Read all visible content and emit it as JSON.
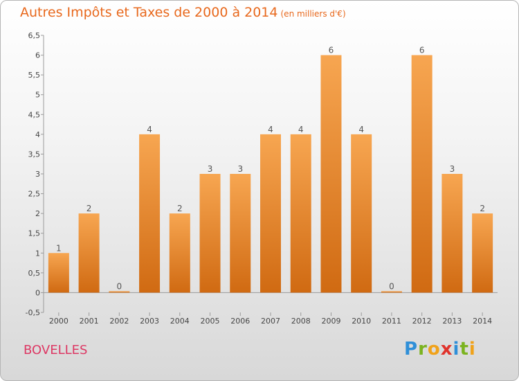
{
  "header": {
    "title": "Autres Impôts et Taxes de 2000 à 2014",
    "unit": "(en milliers d'€)"
  },
  "footer": {
    "place": "BOVELLES"
  },
  "logo": {
    "letters": [
      "P",
      "r",
      "o",
      "x",
      "i",
      "t",
      "i"
    ],
    "colors": [
      "#2f8fd8",
      "#7bb31f",
      "#f0a21a",
      "#e0332c",
      "#2f8fd8",
      "#7bb31f",
      "#f0a21a"
    ]
  },
  "colors": {
    "bar_top": "#f7a651",
    "bar_bottom": "#d06a12",
    "title": "#e8681c",
    "place": "#dd3864"
  },
  "chart_data": {
    "type": "bar",
    "title": "Autres Impôts et Taxes de 2000 à 2014",
    "xlabel": "",
    "ylabel": "",
    "categories": [
      "2000",
      "2001",
      "2002",
      "2003",
      "2004",
      "2005",
      "2006",
      "2007",
      "2008",
      "2009",
      "2010",
      "2011",
      "2012",
      "2013",
      "2014"
    ],
    "values": [
      1,
      2,
      0,
      4,
      2,
      3,
      3,
      4,
      4,
      6,
      4,
      0,
      6,
      3,
      2
    ],
    "data_labels": [
      "1",
      "2",
      "0",
      "4",
      "2",
      "3",
      "3",
      "4",
      "4",
      "6",
      "4",
      "0",
      "6",
      "3",
      "2"
    ],
    "ylim": [
      -0.5,
      6.5
    ],
    "yticks": [
      -0.5,
      0,
      0.5,
      1,
      1.5,
      2,
      2.5,
      3,
      3.5,
      4,
      4.5,
      5,
      5.5,
      6,
      6.5
    ],
    "ytick_labels": [
      "-0,5",
      "0",
      "0,5",
      "1",
      "1,5",
      "2",
      "2,5",
      "3",
      "3,5",
      "4",
      "4,5",
      "5",
      "5,5",
      "6",
      "6,5"
    ],
    "grid": false,
    "legend": "none"
  }
}
